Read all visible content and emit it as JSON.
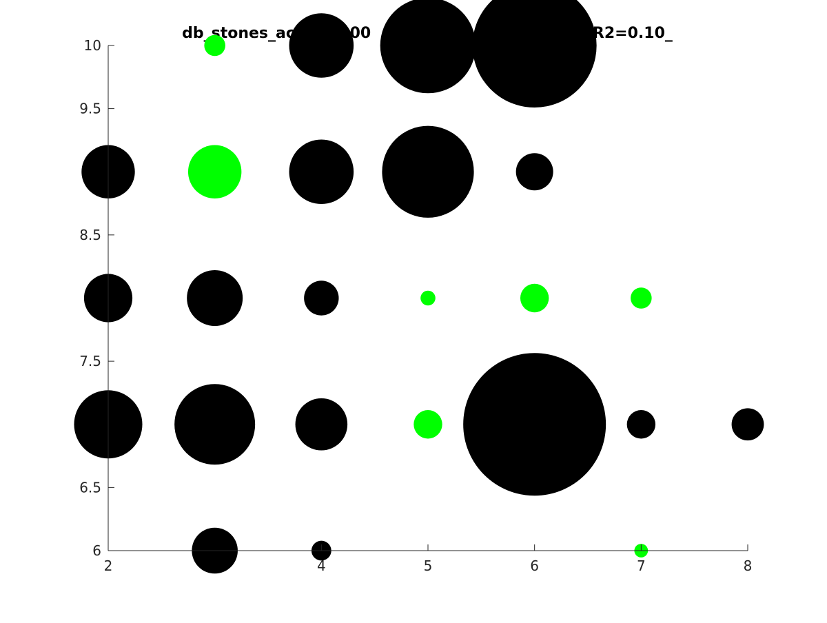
{
  "chart_data": {
    "type": "scatter",
    "title": "db_stones_ac      =200                                          R2=0.10_",
    "xlabel": "",
    "ylabel": "",
    "xlim": [
      2,
      8
    ],
    "ylim": [
      6,
      10
    ],
    "grid": false,
    "x_ticks": [
      "2",
      "4",
      "5",
      "6",
      "7",
      "8"
    ],
    "x_tick_values": [
      2,
      4,
      5,
      6,
      7,
      8
    ],
    "y_ticks": [
      "6",
      "6.5",
      "7.5",
      "8.5",
      "9.5",
      "10"
    ],
    "y_tick_values": [
      6,
      6.5,
      7.5,
      8.5,
      9.5,
      10
    ],
    "colors": {
      "black": "#000000",
      "green": "#00ff00"
    },
    "points": [
      {
        "x": 3,
        "y": 10,
        "size": 0.17,
        "color": "green"
      },
      {
        "x": 4,
        "y": 10,
        "size": 0.52,
        "color": "black"
      },
      {
        "x": 5,
        "y": 10,
        "size": 0.77,
        "color": "black"
      },
      {
        "x": 6,
        "y": 10,
        "size": 1.0,
        "color": "black"
      },
      {
        "x": 2,
        "y": 9,
        "size": 0.43,
        "color": "black"
      },
      {
        "x": 3,
        "y": 9,
        "size": 0.43,
        "color": "green"
      },
      {
        "x": 4,
        "y": 9,
        "size": 0.52,
        "color": "black"
      },
      {
        "x": 5,
        "y": 9,
        "size": 0.74,
        "color": "black"
      },
      {
        "x": 6,
        "y": 9,
        "size": 0.3,
        "color": "black"
      },
      {
        "x": 2,
        "y": 8,
        "size": 0.39,
        "color": "black"
      },
      {
        "x": 3,
        "y": 8,
        "size": 0.45,
        "color": "black"
      },
      {
        "x": 4,
        "y": 8,
        "size": 0.28,
        "color": "black"
      },
      {
        "x": 5,
        "y": 8,
        "size": 0.12,
        "color": "green"
      },
      {
        "x": 6,
        "y": 8,
        "size": 0.23,
        "color": "green"
      },
      {
        "x": 7,
        "y": 8,
        "size": 0.17,
        "color": "green"
      },
      {
        "x": 2,
        "y": 7,
        "size": 0.55,
        "color": "black"
      },
      {
        "x": 3,
        "y": 7,
        "size": 0.65,
        "color": "black"
      },
      {
        "x": 4,
        "y": 7,
        "size": 0.42,
        "color": "black"
      },
      {
        "x": 5,
        "y": 7,
        "size": 0.23,
        "color": "green"
      },
      {
        "x": 6,
        "y": 7,
        "size": 1.15,
        "color": "black"
      },
      {
        "x": 7,
        "y": 7,
        "size": 0.23,
        "color": "black"
      },
      {
        "x": 8,
        "y": 7,
        "size": 0.26,
        "color": "black"
      },
      {
        "x": 3,
        "y": 6,
        "size": 0.37,
        "color": "black"
      },
      {
        "x": 4,
        "y": 6,
        "size": 0.16,
        "color": "black"
      },
      {
        "x": 7,
        "y": 6,
        "size": 0.11,
        "color": "green"
      }
    ]
  }
}
